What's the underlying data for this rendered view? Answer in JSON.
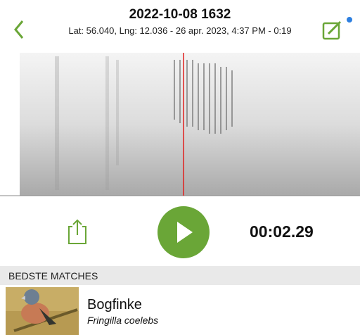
{
  "header": {
    "title": "2022-10-08 1632",
    "subtitle": "Lat: 56.040, Lng: 12.036 - 26 apr. 2023, 4:37 PM - 0:19"
  },
  "player": {
    "position": "00:02.29"
  },
  "matches": {
    "heading": "BEDSTE MATCHES",
    "items": [
      {
        "name": "Bogfinke",
        "latin": "Fringilla coelebs"
      }
    ]
  }
}
